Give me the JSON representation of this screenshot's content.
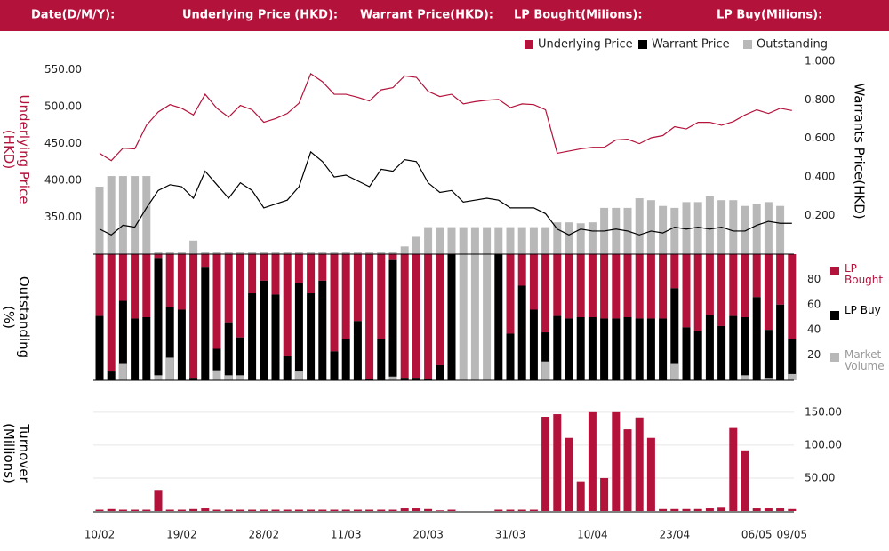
{
  "header": {
    "fields": [
      "Date(D/M/Y):",
      "Underlying Price (HKD):",
      "Warrant  Price(HKD):",
      "LP Bought(Milions):",
      "LP Buy(Milions):"
    ]
  },
  "chart_data": [
    {
      "type": "line",
      "y_label": "Underlying Price (HKD)",
      "y2_label": "Warrants  Price(HKD)",
      "ylim": [
        300,
        575
      ],
      "yticks": [
        {
          "value": 350,
          "label": "350.00"
        },
        {
          "value": 400,
          "label": "400.00"
        },
        {
          "value": 450,
          "label": "450.00"
        },
        {
          "value": 500,
          "label": "500.00"
        },
        {
          "value": 550,
          "label": "550.00"
        }
      ],
      "y2lim": [
        0,
        1.05
      ],
      "y2ticks": [
        {
          "value": 0.2,
          "label": "0.200"
        },
        {
          "value": 0.4,
          "label": "0.400"
        },
        {
          "value": 0.6,
          "label": "0.600"
        },
        {
          "value": 0.8,
          "label": "0.800"
        },
        {
          "value": 1,
          "label": "1.000"
        }
      ],
      "series": [
        {
          "name": "Underlying Price",
          "color": "#b3123b",
          "values": [
            437,
            427,
            444,
            443,
            475,
            493,
            503,
            498,
            489,
            517,
            498,
            486,
            502,
            496,
            479,
            484,
            491,
            505,
            545,
            534,
            517,
            517,
            513,
            508,
            523,
            526,
            542,
            540,
            521,
            514,
            517,
            504,
            507,
            509,
            510,
            499,
            504,
            503,
            496,
            437,
            440,
            443,
            445,
            445,
            455,
            456,
            450,
            458,
            461,
            473,
            470,
            479,
            479,
            475,
            480,
            489,
            496,
            491,
            498,
            495
          ]
        },
        {
          "name": "Warrant  Price",
          "color": "#000000",
          "axis": "y2",
          "values": [
            0.13,
            0.1,
            0.15,
            0.14,
            0.24,
            0.33,
            0.36,
            0.35,
            0.29,
            0.43,
            0.36,
            0.29,
            0.37,
            0.33,
            0.24,
            0.26,
            0.28,
            0.35,
            0.53,
            0.48,
            0.4,
            0.41,
            0.38,
            0.35,
            0.44,
            0.43,
            0.49,
            0.48,
            0.37,
            0.32,
            0.33,
            0.27,
            0.28,
            0.29,
            0.28,
            0.24,
            0.24,
            0.24,
            0.21,
            0.13,
            0.1,
            0.13,
            0.12,
            0.12,
            0.13,
            0.12,
            0.1,
            0.12,
            0.11,
            0.14,
            0.13,
            0.14,
            0.13,
            0.14,
            0.12,
            0.12,
            0.15,
            0.17,
            0.16,
            0.16
          ]
        },
        {
          "name": "Outstanding",
          "color": "#b8b8b8",
          "axis": "y2",
          "type": "bar",
          "values": [
            0.35,
            0.405,
            0.405,
            0.405,
            0.405,
            0.01,
            0.01,
            0.01,
            0.07,
            0.01,
            0.01,
            0.01,
            0.01,
            0.01,
            0.01,
            0.01,
            0.01,
            0.01,
            0.01,
            0.01,
            0.01,
            0.01,
            0.01,
            0.01,
            0.01,
            0.01,
            0.04,
            0.09,
            0.14,
            0.14,
            0.14,
            0.14,
            0.14,
            0.14,
            0.14,
            0.14,
            0.14,
            0.14,
            0.14,
            0.165,
            0.165,
            0.16,
            0.165,
            0.24,
            0.24,
            0.24,
            0.29,
            0.28,
            0.25,
            0.24,
            0.27,
            0.27,
            0.3,
            0.28,
            0.28,
            0.25,
            0.26,
            0.27,
            0.25,
            0
          ]
        }
      ]
    },
    {
      "type": "bar",
      "y_label": "Outstanding (%)",
      "ylim": [
        0,
        100
      ],
      "yticks": [
        20,
        40,
        60,
        80
      ],
      "series": [
        {
          "name": "LP Bought",
          "color": "#b3123b",
          "from": "top",
          "values": [
            49,
            93,
            37,
            51,
            50,
            3,
            42,
            44,
            98,
            10,
            75,
            54,
            66,
            31,
            21,
            32,
            81,
            23,
            31,
            21,
            77,
            67,
            53,
            99,
            67,
            4,
            98,
            98,
            99,
            88,
            0,
            0,
            0,
            0,
            0,
            63,
            25,
            44,
            62,
            49,
            51,
            50,
            50,
            51,
            51,
            50,
            51,
            51,
            51,
            27,
            58,
            61,
            48,
            57,
            49,
            50,
            34,
            60,
            40,
            67
          ]
        },
        {
          "name": "LP Buy",
          "color": "#000000",
          "values": [
            51,
            7,
            63,
            49,
            50,
            97,
            58,
            56,
            2,
            90,
            25,
            46,
            34,
            69,
            79,
            68,
            19,
            77,
            69,
            79,
            23,
            33,
            47,
            1,
            33,
            96,
            2,
            2,
            1,
            12,
            100,
            0,
            0,
            0,
            100,
            37,
            75,
            56,
            38,
            51,
            49,
            50,
            50,
            49,
            49,
            50,
            49,
            49,
            49,
            73,
            42,
            39,
            52,
            43,
            51,
            50,
            66,
            40,
            60,
            33
          ]
        },
        {
          "name": "Market Volume",
          "color": "#b8b8b8",
          "values": [
            0,
            0,
            13,
            0,
            0,
            4,
            18,
            0,
            0,
            0,
            8,
            4,
            4,
            0,
            0,
            0,
            0,
            7,
            0,
            0,
            0,
            0,
            0,
            0,
            0,
            3,
            0,
            0,
            0,
            0,
            0,
            100,
            100,
            100,
            0,
            0,
            0,
            0,
            15,
            0,
            0,
            0,
            0,
            0,
            0,
            0,
            0,
            0,
            0,
            13,
            0,
            0,
            0,
            0,
            0,
            4,
            0,
            2,
            0,
            5
          ]
        }
      ]
    },
    {
      "type": "bar",
      "y_label": "Turnover (Millions)",
      "ylim": [
        0,
        170
      ],
      "yticks": [
        {
          "value": 50,
          "label": "50.00"
        },
        {
          "value": 100,
          "label": "100.00"
        },
        {
          "value": 150,
          "label": "150.00"
        }
      ],
      "grid": true,
      "categories": [
        "10/02",
        null,
        null,
        null,
        null,
        null,
        null,
        "19/02",
        null,
        null,
        null,
        null,
        null,
        null,
        "28/02",
        null,
        null,
        null,
        null,
        null,
        null,
        "11/03",
        null,
        null,
        null,
        null,
        null,
        null,
        "20/03",
        null,
        null,
        null,
        null,
        null,
        null,
        "31/03",
        null,
        null,
        null,
        null,
        null,
        null,
        "10/04",
        null,
        null,
        null,
        null,
        null,
        null,
        "23/04",
        null,
        null,
        null,
        null,
        null,
        null,
        "06/05",
        null,
        null,
        "09/05"
      ],
      "series": [
        {
          "name": "Turnover",
          "color": "#b3123b",
          "values": [
            2,
            3,
            2,
            2,
            2,
            32,
            2,
            2,
            3,
            4,
            2,
            2,
            2,
            2,
            2,
            2,
            2,
            2,
            2,
            2,
            2,
            2,
            2,
            2,
            2,
            2,
            4,
            4,
            3,
            1,
            2,
            0,
            0,
            0,
            2,
            2,
            2,
            2,
            143,
            147,
            111,
            45,
            150,
            50,
            150,
            124,
            142,
            111,
            3,
            3,
            3,
            3,
            4,
            5,
            126,
            92,
            4,
            4,
            4,
            3
          ]
        }
      ]
    }
  ]
}
